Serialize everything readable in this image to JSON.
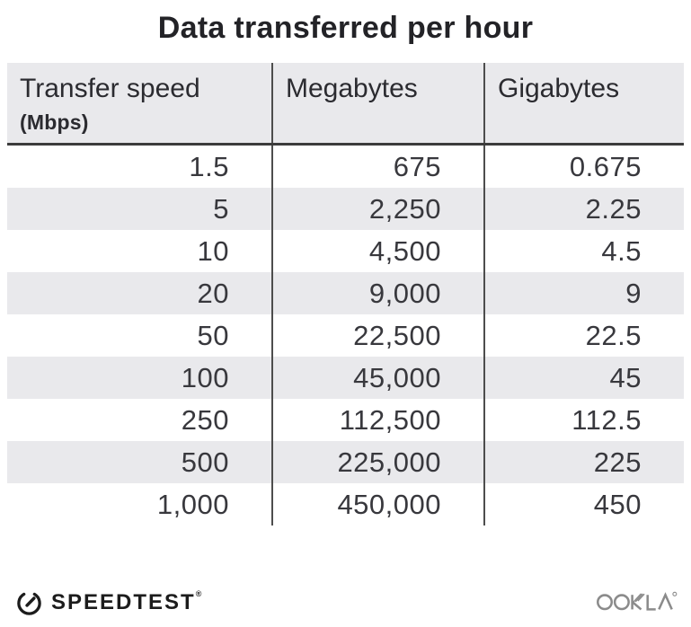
{
  "chart_data": {
    "type": "table",
    "title": "Data transferred per hour",
    "columns": [
      {
        "label": "Transfer speed",
        "sublabel": "(Mbps)"
      },
      {
        "label": "Megabytes",
        "sublabel": ""
      },
      {
        "label": "Gigabytes",
        "sublabel": ""
      }
    ],
    "rows": [
      [
        "1.5",
        "675",
        "0.675"
      ],
      [
        "5",
        "2,250",
        "2.25"
      ],
      [
        "10",
        "4,500",
        "4.5"
      ],
      [
        "20",
        "9,000",
        "9"
      ],
      [
        "50",
        "22,500",
        "22.5"
      ],
      [
        "100",
        "45,000",
        "45"
      ],
      [
        "250",
        "112,500",
        "112.5"
      ],
      [
        "500",
        "225,000",
        "225"
      ],
      [
        "1,000",
        "450,000",
        "450"
      ]
    ],
    "layout": {
      "striped_rows": true,
      "stripe_on": "even",
      "column_dividers": true,
      "header_rule": true
    }
  },
  "footer": {
    "speedtest_label": "SPEEDTEST",
    "speedtest_trademark": "®",
    "ookla_label": "OOKLA",
    "ookla_trademark": "®",
    "gauge_icon": "speedometer-gauge-icon",
    "ookla_icon": "ookla-wordmark-icon"
  },
  "colors": {
    "background": "#ffffff",
    "stripe_gray": "#e9e9ec",
    "divider_dark": "#4d4d4d",
    "header_rule": "#3c3c3c",
    "title_text": "#232327",
    "header_text": "#2b2b30",
    "body_text": "#38383d",
    "speedtest_black": "#1c1c1c",
    "ookla_gray": "#8b8b8b"
  }
}
